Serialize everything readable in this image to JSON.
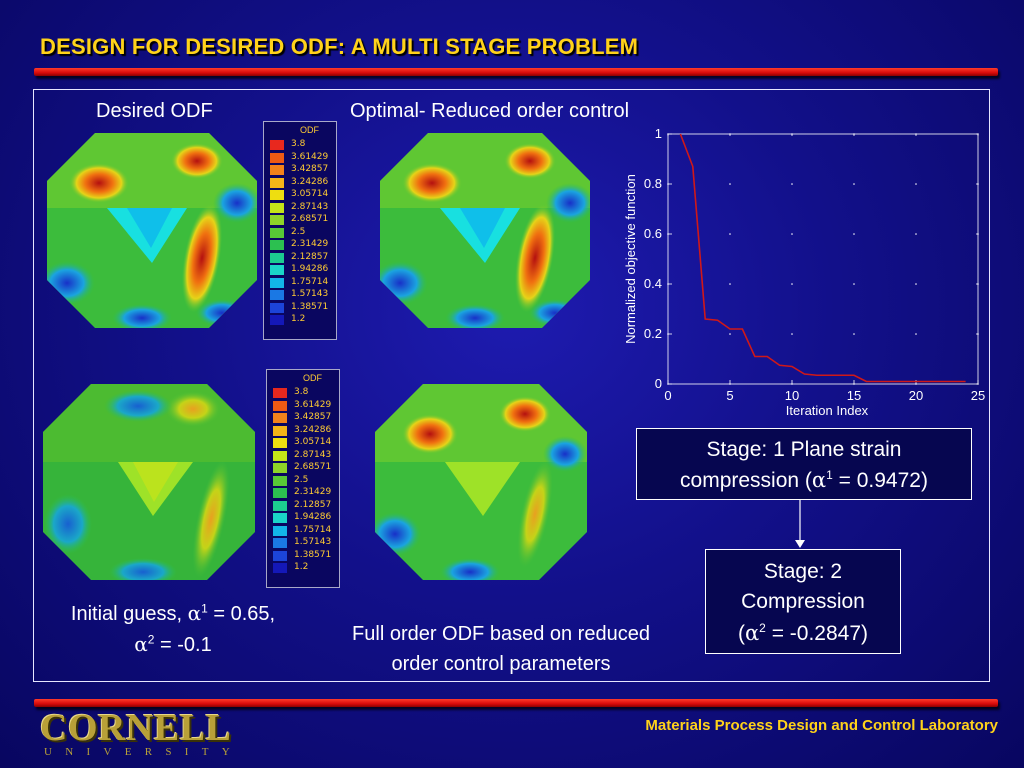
{
  "slide": {
    "title": "DESIGN FOR DESIRED ODF: A MULTI STAGE PROBLEM",
    "label_desired": "Desired ODF",
    "label_optimal": "Optimal- Reduced order control",
    "initial_guess_line1_pre": "Initial guess, ",
    "alpha": "α",
    "sup1": "1",
    "sup2": "2",
    "initial_guess_line1_post": " = 0.65,",
    "initial_guess_line2_post": " = -0.1",
    "full_order_caption_line1": "Full order ODF based on reduced",
    "full_order_caption_line2": "order control parameters"
  },
  "legend": {
    "title": "ODF",
    "values": [
      "3.8",
      "3.61429",
      "3.42857",
      "3.24286",
      "3.05714",
      "2.87143",
      "2.68571",
      "2.5",
      "2.31429",
      "2.12857",
      "1.94286",
      "1.75714",
      "1.57143",
      "1.38571",
      "1.2"
    ],
    "colors": [
      "#e8281e",
      "#ee5a14",
      "#f2821a",
      "#f4b418",
      "#eede10",
      "#c4e418",
      "#8ed428",
      "#58c836",
      "#2cc050",
      "#1ccc90",
      "#1ad4c8",
      "#12b4e8",
      "#1a78e4",
      "#1c44d8",
      "#1418b8"
    ]
  },
  "stages": {
    "stage1_line1": "Stage: 1 Plane strain",
    "stage1_line2_pre": "compression (",
    "stage1_line2_post": " = 0.9472)",
    "stage2_line1": "Stage: 2",
    "stage2_line2": "Compression",
    "stage2_line3_pre": "(",
    "stage2_line3_post": " = -0.2847)"
  },
  "footer": {
    "lab": "Materials Process Design and Control Laboratory",
    "logo_main": "CORNELL",
    "logo_sub": "UNIVERSITY"
  },
  "colors": {
    "title": "#ffd21a",
    "accent_red": "#e01010",
    "chart_line": "#d01818"
  },
  "chart_data": {
    "type": "line",
    "xlabel": "Iteration Index",
    "ylabel": "Normalized objective function",
    "xlim": [
      0,
      25
    ],
    "ylim": [
      0,
      1
    ],
    "xticks": [
      0,
      5,
      10,
      15,
      20,
      25
    ],
    "yticks": [
      0,
      0.2,
      0.4,
      0.6,
      0.8,
      1
    ],
    "x": [
      1,
      2,
      3,
      4,
      5,
      6,
      7,
      8,
      9,
      10,
      11,
      12,
      13,
      14,
      15,
      16,
      17,
      18,
      19,
      20,
      21,
      22,
      23,
      24
    ],
    "y": [
      1.0,
      0.87,
      0.26,
      0.255,
      0.22,
      0.22,
      0.11,
      0.11,
      0.075,
      0.07,
      0.04,
      0.035,
      0.035,
      0.035,
      0.035,
      0.01,
      0.01,
      0.01,
      0.01,
      0.01,
      0.01,
      0.01,
      0.01,
      0.01
    ]
  }
}
